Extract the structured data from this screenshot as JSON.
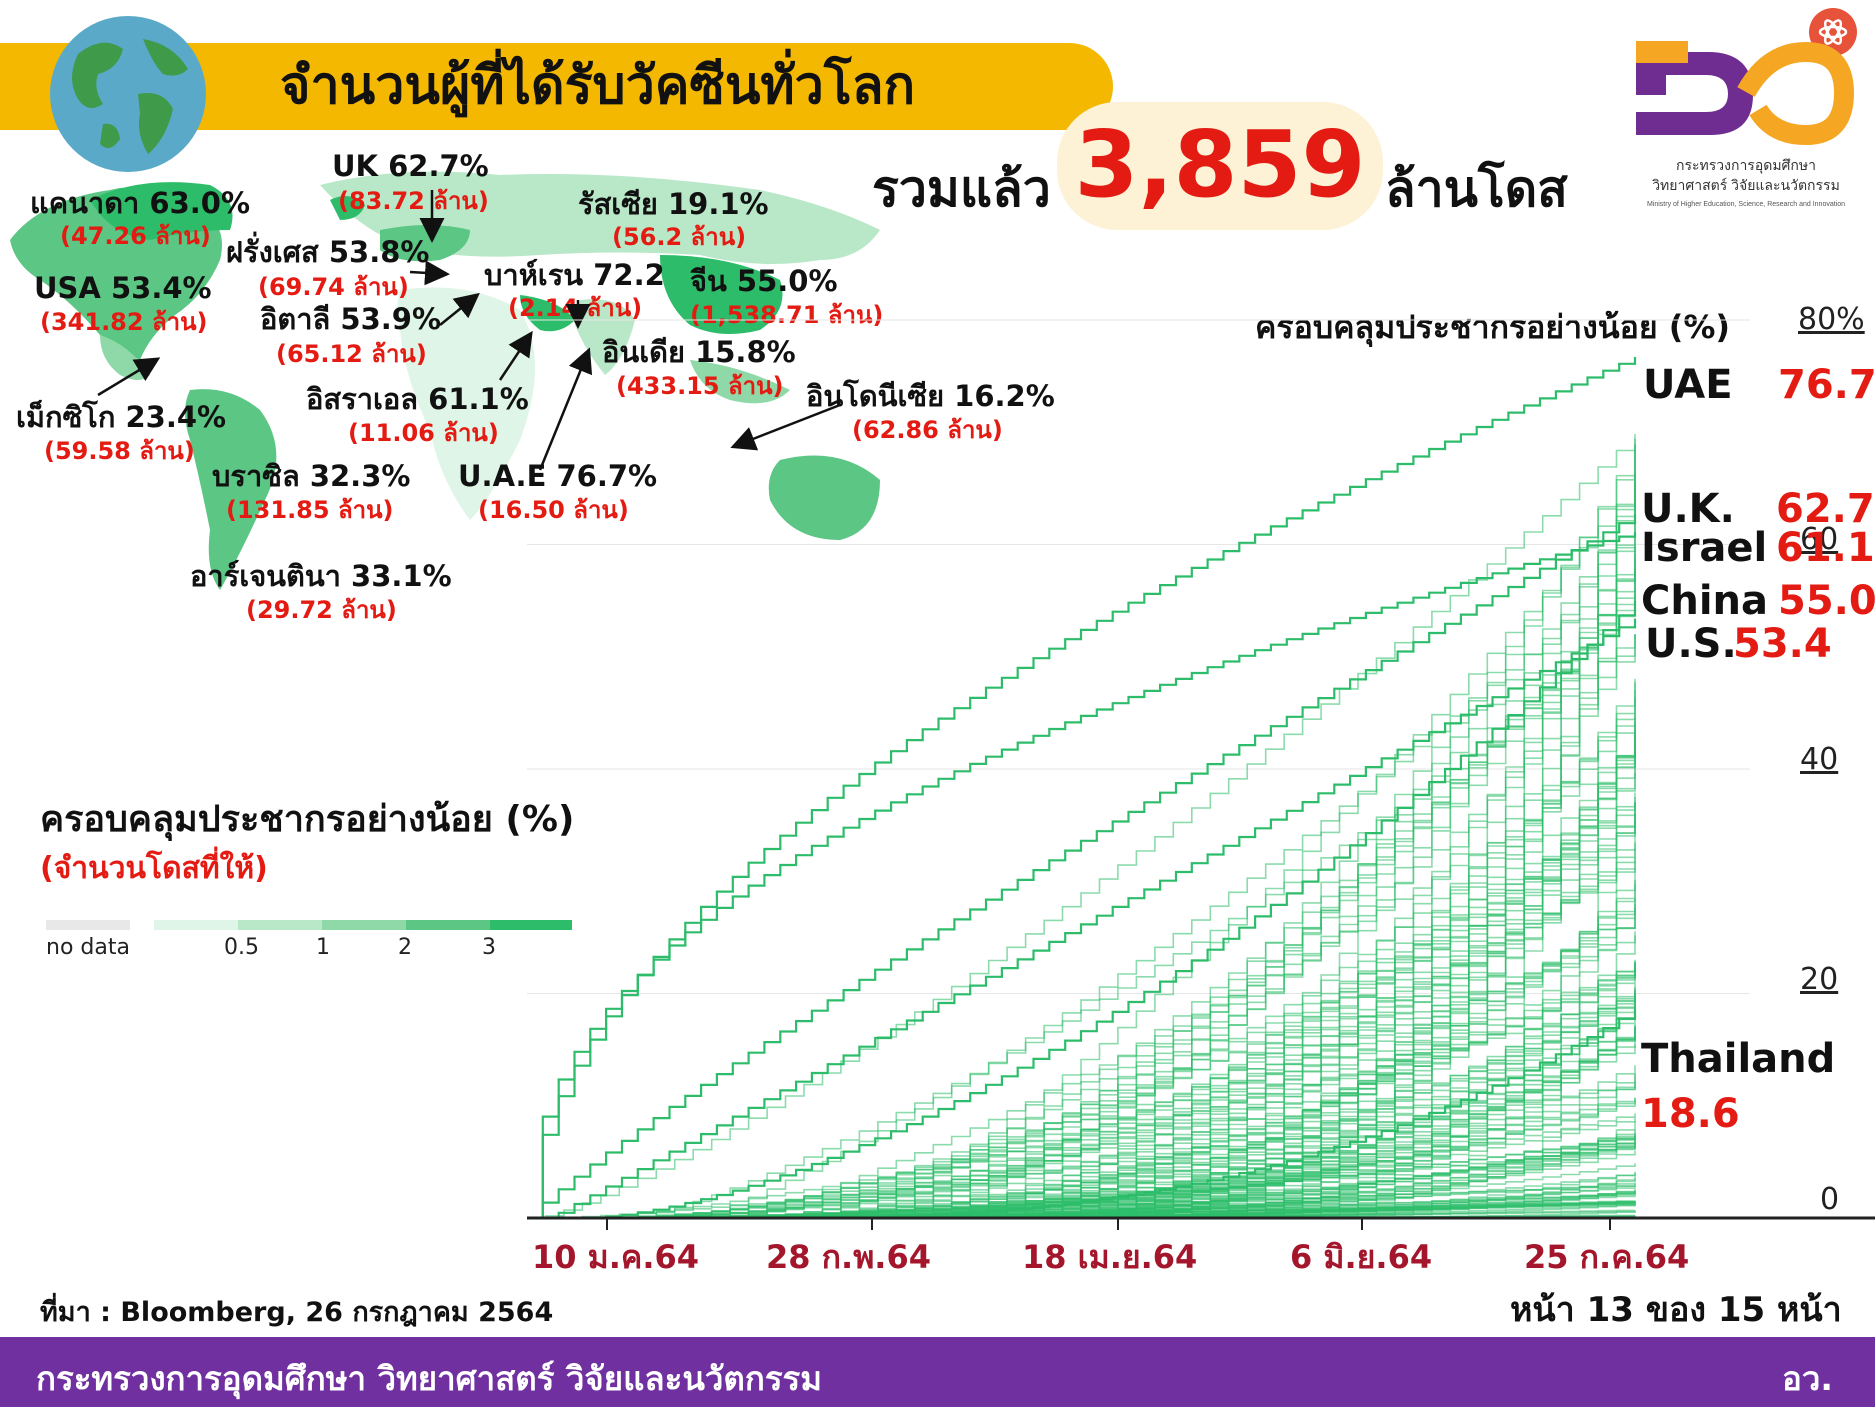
{
  "header": {
    "title": "จำนวนผู้ที่ได้รับวัคซีนทั่วโลก",
    "total_prefix": "รวมแล้ว",
    "total_value": "3,859",
    "total_suffix": "ล้านโดส"
  },
  "logo": {
    "ministry_th": "กระทรวงการอุดมศึกษา วิทยาศาสตร์ วิจัยและนวัตกรรม",
    "ministry_en": "Ministry of Higher Education, Science, Research and Innovation"
  },
  "map": {
    "callouts": [
      {
        "country": "แคนาดา 63.0%",
        "doses": "(47.26 ล้าน)"
      },
      {
        "country": "UK 62.7%",
        "doses": "(83.72 ล้าน)"
      },
      {
        "country": "รัสเซีย 19.1%",
        "doses": "(56.2 ล้าน)"
      },
      {
        "country": "ฝรั่งเศส 53.8%",
        "doses": "(69.74 ล้าน)"
      },
      {
        "country": "USA 53.4%",
        "doses": "(341.82 ล้าน)"
      },
      {
        "country": "บาห์เรน 72.2",
        "doses": "(2.14 ล้าน)"
      },
      {
        "country": "จีน 55.0%",
        "doses": "(1,538.71 ล้าน)"
      },
      {
        "country": "อิตาลี 53.9%",
        "doses": "(65.12 ล้าน)"
      },
      {
        "country": "อินเดีย 15.8%",
        "doses": "(433.15 ล้าน)"
      },
      {
        "country": "อิสราเอล 61.1%",
        "doses": "(11.06 ล้าน)"
      },
      {
        "country": "อินโดนีเซีย 16.2%",
        "doses": "(62.86 ล้าน)"
      },
      {
        "country": "เม็กซิโก 23.4%",
        "doses": "(59.58 ล้าน)"
      },
      {
        "country": "บราซิล 32.3%",
        "doses": "(131.85 ล้าน)"
      },
      {
        "country": "U.A.E 76.7%",
        "doses": "(16.50 ล้าน)"
      },
      {
        "country": "อาร์เจนตินา 33.1%",
        "doses": "(29.72 ล้าน)"
      }
    ],
    "legend_title": "ครอบคลุมประชากรอย่างน้อย (%)",
    "legend_subtitle": "(จำนวนโดสที่ให้)",
    "legend_nodata": "no data",
    "legend_ticks": [
      "0.5",
      "1",
      "2",
      "3"
    ],
    "colors": {
      "nodata": "#e8e8e8",
      "s1": "#dff5e7",
      "s2": "#b9e8c8",
      "s3": "#8fd9a8",
      "s4": "#5cc685",
      "s5": "#2dbd6a"
    }
  },
  "chart_data": {
    "type": "line",
    "title": "ครอบคลุมประชากรอย่างน้อย (%)",
    "xlabel": "",
    "ylabel": "",
    "x_tick_labels": [
      "10 ม.ค.64",
      "28 ก.พ.64",
      "18 เม.ย.64",
      "6 มิ.ย.64",
      "25 ก.ค.64"
    ],
    "y_tick_labels": [
      "80%",
      "60",
      "40",
      "20",
      "0"
    ],
    "ylim": [
      0,
      80
    ],
    "line_color": "#2dbd6a",
    "labeled_series": [
      {
        "name": "UAE",
        "final_value": 76.7
      },
      {
        "name": "U.K.",
        "final_value": 62.7
      },
      {
        "name": "Israel",
        "final_value": 61.1
      },
      {
        "name": "China",
        "final_value": 55.0
      },
      {
        "name": "U.S.",
        "final_value": 53.4
      },
      {
        "name": "Thailand",
        "final_value": 18.6
      }
    ],
    "labeled_values_text": [
      "76.7",
      "62.7",
      "61.1",
      "55.0",
      "53.4",
      "18.6"
    ]
  },
  "footer": {
    "source": "ที่มา : Bloomberg, 26 กรกฎาคม 2564",
    "page": "หน้า 13 ของ 15 หน้า",
    "ministry": "กระทรวงการอุดมศึกษา วิทยาศาสตร์ วิจัยและนวัตกรรม",
    "short": "อว."
  }
}
